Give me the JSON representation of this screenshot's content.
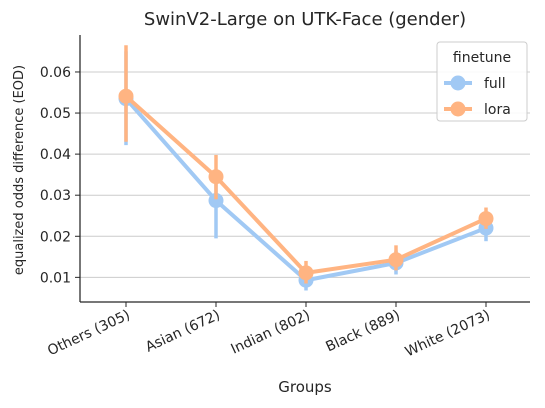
{
  "chart_data": {
    "type": "line",
    "title": "SwinV2-Large on UTK-Face (gender)",
    "xlabel": "Groups",
    "ylabel": "equalized odds difference (EOD)",
    "categories": [
      "Others (305)",
      "Asian (672)",
      "Indian (802)",
      "Black (889)",
      "White (2073)"
    ],
    "y_ticks": [
      0.01,
      0.02,
      0.03,
      0.04,
      0.05,
      0.06
    ],
    "y_tick_labels": [
      "0.01",
      "0.02",
      "0.03",
      "0.04",
      "0.05",
      "0.06"
    ],
    "ylim": [
      0.004,
      0.069
    ],
    "grid": "horizontal",
    "legend": {
      "title": "finetune",
      "placement": "top-right"
    },
    "series": [
      {
        "name": "full",
        "color": "#a1c9f4",
        "values": [
          0.0535,
          0.0287,
          0.0093,
          0.0135,
          0.022
        ],
        "ci_low": [
          0.0422,
          0.0195,
          0.0068,
          0.0107,
          0.0188
        ],
        "ci_high": [
          0.065,
          0.036,
          0.012,
          0.0165,
          0.0252
        ]
      },
      {
        "name": "lora",
        "color": "#ffb482",
        "values": [
          0.0541,
          0.0345,
          0.0111,
          0.0143,
          0.0243
        ],
        "ci_low": [
          0.043,
          0.029,
          0.0085,
          0.0117,
          0.0218
        ],
        "ci_high": [
          0.0665,
          0.0398,
          0.014,
          0.0178,
          0.027
        ]
      }
    ]
  }
}
